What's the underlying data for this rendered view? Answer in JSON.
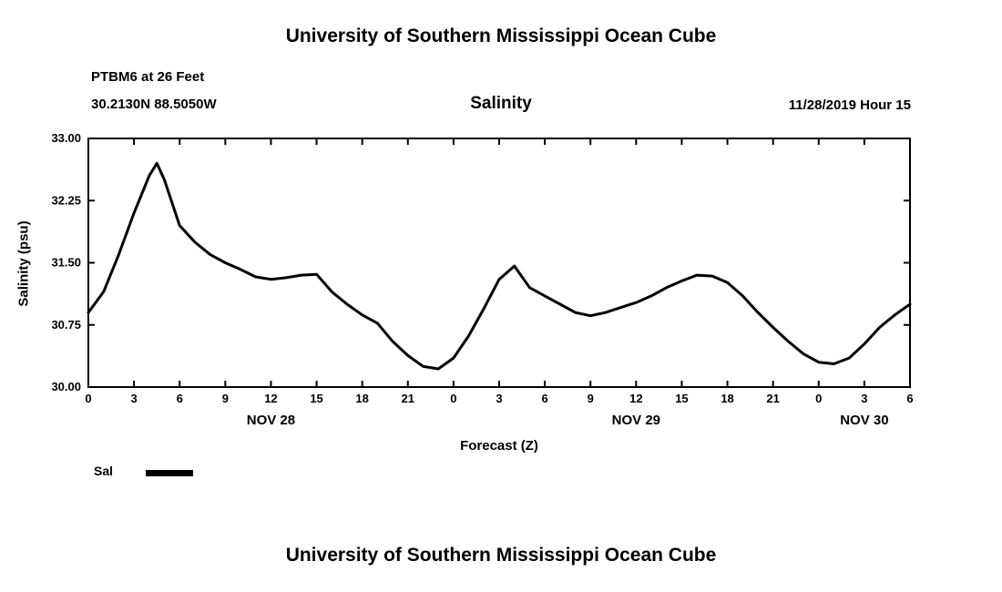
{
  "page": {
    "top_title": "University of Southern Mississippi Ocean Cube",
    "bottom_title": "University of Southern Mississippi Ocean Cube"
  },
  "header": {
    "station_line1": "PTBM6 at 26 Feet",
    "station_line2": "30.2130N 88.5050W",
    "chart_title": "Salinity",
    "run_time": "11/28/2019 Hour 15"
  },
  "legend": {
    "label": "Sal",
    "color": "#000000"
  },
  "chart_data": {
    "type": "line",
    "title": "Salinity",
    "xlabel": "Forecast (Z)",
    "ylabel": "Salinity (psu)",
    "xlim": [
      0,
      54
    ],
    "ylim": [
      30.0,
      33.0
    ],
    "grid": false,
    "legend_position": "bottom-left",
    "x_ticks": [
      0,
      3,
      6,
      9,
      12,
      15,
      18,
      21,
      24,
      27,
      30,
      33,
      36,
      39,
      42,
      45,
      48,
      51,
      54
    ],
    "x_tick_labels": [
      "0",
      "3",
      "6",
      "9",
      "12",
      "15",
      "18",
      "21",
      "0",
      "3",
      "6",
      "9",
      "12",
      "15",
      "18",
      "21",
      "0",
      "3",
      "6"
    ],
    "y_ticks": [
      30.0,
      30.75,
      31.5,
      32.25,
      33.0
    ],
    "y_tick_labels": [
      "30.00",
      "30.75",
      "31.50",
      "32.25",
      "33.00"
    ],
    "date_labels": [
      {
        "label": "NOV 28",
        "hour": 12
      },
      {
        "label": "NOV 29",
        "hour": 36
      },
      {
        "label": "NOV 30",
        "hour": 51
      }
    ],
    "series": [
      {
        "name": "Sal",
        "color": "#000000",
        "x": [
          0,
          1,
          2,
          3,
          4,
          4.5,
          5,
          6,
          7,
          8,
          9,
          10,
          11,
          12,
          13,
          14,
          15,
          16,
          17,
          18,
          19,
          20,
          21,
          22,
          23,
          24,
          25,
          26,
          27,
          28,
          29,
          30,
          31,
          32,
          33,
          34,
          35,
          36,
          37,
          38,
          39,
          40,
          41,
          42,
          43,
          44,
          45,
          46,
          47,
          48,
          49,
          50,
          51,
          52,
          53,
          54
        ],
        "y": [
          30.9,
          31.15,
          31.6,
          32.1,
          32.55,
          32.7,
          32.5,
          31.95,
          31.75,
          31.6,
          31.5,
          31.42,
          31.33,
          31.3,
          31.32,
          31.35,
          31.36,
          31.15,
          31.0,
          30.87,
          30.77,
          30.55,
          30.38,
          30.25,
          30.22,
          30.35,
          30.62,
          30.95,
          31.3,
          31.46,
          31.2,
          31.1,
          31.0,
          30.9,
          30.86,
          30.9,
          30.96,
          31.02,
          31.1,
          31.2,
          31.28,
          31.35,
          31.34,
          31.26,
          31.1,
          30.9,
          30.72,
          30.55,
          30.4,
          30.3,
          30.28,
          30.35,
          30.52,
          30.72,
          30.87,
          31.0
        ]
      }
    ]
  }
}
